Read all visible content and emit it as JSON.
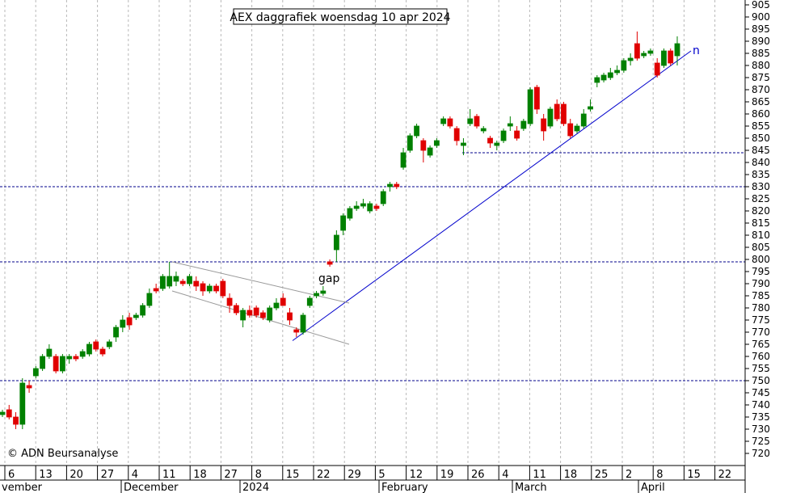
{
  "chart_data": {
    "type": "candlestick",
    "title": "AEX daggrafiek woensdag 10 apr 2024",
    "credit": "© ADN Beursanalyse",
    "annotation_gap": "gap",
    "annotation_n": "n",
    "ylim": [
      715,
      907
    ],
    "y_ticks": [
      720,
      725,
      730,
      735,
      740,
      745,
      750,
      755,
      760,
      765,
      770,
      775,
      780,
      785,
      790,
      795,
      800,
      805,
      810,
      815,
      820,
      825,
      830,
      835,
      840,
      845,
      850,
      855,
      860,
      865,
      870,
      875,
      880,
      885,
      890,
      895,
      900,
      905
    ],
    "grid": true,
    "x_ticks": [
      "6",
      "13",
      "20",
      "27",
      "4",
      "11",
      "18",
      "27",
      "8",
      "15",
      "22",
      "29",
      "5",
      "12",
      "19",
      "26",
      "4",
      "11",
      "18",
      "25",
      "2",
      "8",
      "15",
      "22"
    ],
    "months": [
      "vember",
      "December",
      "2024",
      "February",
      "March",
      "April"
    ],
    "horizontal_levels": [
      750,
      830,
      799,
      844
    ],
    "candles": [
      {
        "o": 736,
        "h": 738,
        "l": 735,
        "c": 737
      },
      {
        "o": 738,
        "h": 740,
        "l": 734,
        "c": 735
      },
      {
        "o": 735,
        "h": 737,
        "l": 730,
        "c": 732
      },
      {
        "o": 732,
        "h": 751,
        "l": 730,
        "c": 749
      },
      {
        "o": 748,
        "h": 750,
        "l": 745,
        "c": 747
      },
      {
        "o": 752,
        "h": 756,
        "l": 751,
        "c": 755
      },
      {
        "o": 755,
        "h": 761,
        "l": 754,
        "c": 760
      },
      {
        "o": 760,
        "h": 765,
        "l": 759,
        "c": 763
      },
      {
        "o": 760,
        "h": 761,
        "l": 753,
        "c": 754
      },
      {
        "o": 754,
        "h": 761,
        "l": 753,
        "c": 760
      },
      {
        "o": 759,
        "h": 761,
        "l": 757,
        "c": 760
      },
      {
        "o": 760,
        "h": 761,
        "l": 758,
        "c": 759
      },
      {
        "o": 760,
        "h": 763,
        "l": 759,
        "c": 762
      },
      {
        "o": 761,
        "h": 766,
        "l": 760,
        "c": 765
      },
      {
        "o": 766,
        "h": 767,
        "l": 762,
        "c": 763
      },
      {
        "o": 763,
        "h": 764,
        "l": 760,
        "c": 761
      },
      {
        "o": 764,
        "h": 767,
        "l": 763,
        "c": 766
      },
      {
        "o": 768,
        "h": 773,
        "l": 766,
        "c": 772
      },
      {
        "o": 772,
        "h": 777,
        "l": 770,
        "c": 775
      },
      {
        "o": 776,
        "h": 778,
        "l": 771,
        "c": 773
      },
      {
        "o": 776,
        "h": 778,
        "l": 775,
        "c": 777
      },
      {
        "o": 777,
        "h": 782,
        "l": 776,
        "c": 781
      },
      {
        "o": 781,
        "h": 788,
        "l": 780,
        "c": 786
      },
      {
        "o": 788,
        "h": 790,
        "l": 786,
        "c": 787
      },
      {
        "o": 788,
        "h": 794,
        "l": 787,
        "c": 793
      },
      {
        "o": 789,
        "h": 799,
        "l": 788,
        "c": 793
      },
      {
        "o": 791,
        "h": 795,
        "l": 789,
        "c": 793
      },
      {
        "o": 791,
        "h": 792,
        "l": 789,
        "c": 790
      },
      {
        "o": 790,
        "h": 794,
        "l": 789,
        "c": 793
      },
      {
        "o": 791,
        "h": 793,
        "l": 787,
        "c": 789
      },
      {
        "o": 790,
        "h": 791,
        "l": 785,
        "c": 787
      },
      {
        "o": 787,
        "h": 790,
        "l": 786,
        "c": 789
      },
      {
        "o": 789,
        "h": 790,
        "l": 786,
        "c": 787
      },
      {
        "o": 791,
        "h": 792,
        "l": 784,
        "c": 785
      },
      {
        "o": 784,
        "h": 786,
        "l": 778,
        "c": 781
      },
      {
        "o": 781,
        "h": 782,
        "l": 777,
        "c": 778
      },
      {
        "o": 775,
        "h": 780,
        "l": 772,
        "c": 779
      },
      {
        "o": 779,
        "h": 781,
        "l": 776,
        "c": 777
      },
      {
        "o": 780,
        "h": 781,
        "l": 776,
        "c": 777
      },
      {
        "o": 778,
        "h": 779,
        "l": 775,
        "c": 776
      },
      {
        "o": 775,
        "h": 781,
        "l": 774,
        "c": 780
      },
      {
        "o": 780,
        "h": 784,
        "l": 779,
        "c": 782
      },
      {
        "o": 784,
        "h": 786,
        "l": 781,
        "c": 781
      },
      {
        "o": 778,
        "h": 780,
        "l": 773,
        "c": 775
      },
      {
        "o": 771,
        "h": 772,
        "l": 768,
        "c": 770
      },
      {
        "o": 770,
        "h": 778,
        "l": 769,
        "c": 777
      },
      {
        "o": 781,
        "h": 785,
        "l": 780,
        "c": 784
      },
      {
        "o": 785,
        "h": 787,
        "l": 784,
        "c": 786
      },
      {
        "o": 786,
        "h": 789,
        "l": 785,
        "c": 787
      },
      {
        "o": 799,
        "h": 800,
        "l": 797,
        "c": 798
      },
      {
        "o": 804,
        "h": 812,
        "l": 799,
        "c": 810
      },
      {
        "o": 812,
        "h": 819,
        "l": 810,
        "c": 818
      },
      {
        "o": 817,
        "h": 822,
        "l": 816,
        "c": 821
      },
      {
        "o": 821,
        "h": 824,
        "l": 820,
        "c": 822
      },
      {
        "o": 822,
        "h": 825,
        "l": 821,
        "c": 823
      },
      {
        "o": 820,
        "h": 824,
        "l": 819,
        "c": 823
      },
      {
        "o": 822,
        "h": 823,
        "l": 820,
        "c": 821
      },
      {
        "o": 823,
        "h": 829,
        "l": 822,
        "c": 828
      },
      {
        "o": 830,
        "h": 832,
        "l": 828,
        "c": 831
      },
      {
        "o": 831,
        "h": 832,
        "l": 829,
        "c": 830
      },
      {
        "o": 838,
        "h": 846,
        "l": 837,
        "c": 844
      },
      {
        "o": 845,
        "h": 852,
        "l": 844,
        "c": 851
      },
      {
        "o": 851,
        "h": 856,
        "l": 850,
        "c": 855
      },
      {
        "o": 849,
        "h": 850,
        "l": 840,
        "c": 845
      },
      {
        "o": 843,
        "h": 847,
        "l": 842,
        "c": 846
      },
      {
        "o": 847,
        "h": 850,
        "l": 846,
        "c": 849
      },
      {
        "o": 856,
        "h": 859,
        "l": 855,
        "c": 858
      },
      {
        "o": 858,
        "h": 859,
        "l": 854,
        "c": 855
      },
      {
        "o": 854,
        "h": 855,
        "l": 847,
        "c": 849
      },
      {
        "o": 847,
        "h": 850,
        "l": 843,
        "c": 848
      },
      {
        "o": 856,
        "h": 862,
        "l": 855,
        "c": 858
      },
      {
        "o": 859,
        "h": 860,
        "l": 854,
        "c": 855
      },
      {
        "o": 853,
        "h": 855,
        "l": 852,
        "c": 854
      },
      {
        "o": 850,
        "h": 851,
        "l": 846,
        "c": 848
      },
      {
        "o": 847,
        "h": 849,
        "l": 845,
        "c": 848
      },
      {
        "o": 849,
        "h": 854,
        "l": 848,
        "c": 853
      },
      {
        "o": 855,
        "h": 859,
        "l": 853,
        "c": 856
      },
      {
        "o": 853,
        "h": 855,
        "l": 849,
        "c": 850
      },
      {
        "o": 854,
        "h": 858,
        "l": 853,
        "c": 857
      },
      {
        "o": 856,
        "h": 871,
        "l": 855,
        "c": 870
      },
      {
        "o": 871,
        "h": 872,
        "l": 860,
        "c": 862
      },
      {
        "o": 858,
        "h": 860,
        "l": 849,
        "c": 853
      },
      {
        "o": 855,
        "h": 863,
        "l": 854,
        "c": 862
      },
      {
        "o": 864,
        "h": 866,
        "l": 857,
        "c": 858
      },
      {
        "o": 864,
        "h": 865,
        "l": 855,
        "c": 856
      },
      {
        "o": 856,
        "h": 858,
        "l": 850,
        "c": 851
      },
      {
        "o": 853,
        "h": 856,
        "l": 852,
        "c": 855
      },
      {
        "o": 855,
        "h": 862,
        "l": 854,
        "c": 860
      },
      {
        "o": 862,
        "h": 866,
        "l": 861,
        "c": 863
      },
      {
        "o": 873,
        "h": 876,
        "l": 871,
        "c": 875
      },
      {
        "o": 874,
        "h": 877,
        "l": 873,
        "c": 876
      },
      {
        "o": 875,
        "h": 879,
        "l": 874,
        "c": 877
      },
      {
        "o": 877,
        "h": 880,
        "l": 876,
        "c": 878
      },
      {
        "o": 878,
        "h": 883,
        "l": 877,
        "c": 882
      },
      {
        "o": 882,
        "h": 885,
        "l": 880,
        "c": 883
      },
      {
        "o": 889,
        "h": 894,
        "l": 882,
        "c": 883
      },
      {
        "o": 884,
        "h": 886,
        "l": 883,
        "c": 885
      },
      {
        "o": 885,
        "h": 887,
        "l": 884,
        "c": 886
      },
      {
        "o": 881,
        "h": 883,
        "l": 875,
        "c": 876
      },
      {
        "o": 880,
        "h": 887,
        "l": 879,
        "c": 886
      },
      {
        "o": 886,
        "h": 887,
        "l": 880,
        "c": 881
      },
      {
        "o": 884,
        "h": 892,
        "l": 880,
        "c": 889
      }
    ]
  }
}
